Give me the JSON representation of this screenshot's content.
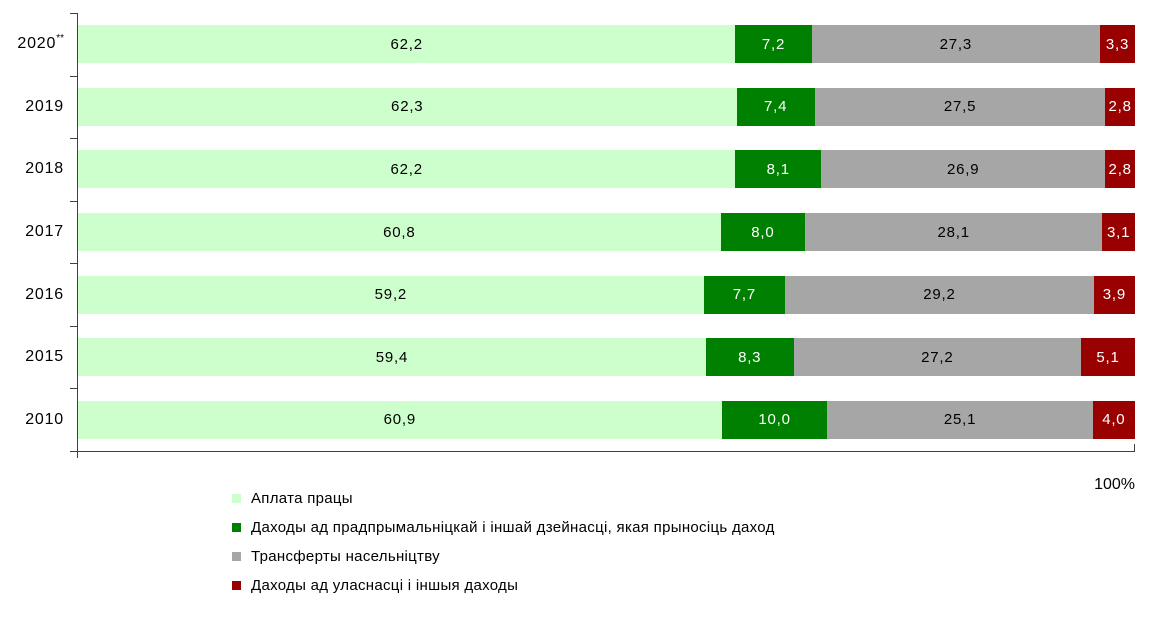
{
  "chart_data": {
    "type": "bar",
    "subtype": "horizontal-stacked-100pct",
    "title": "",
    "categories": [
      "2020",
      "2019",
      "2018",
      "2017",
      "2016",
      "2015",
      "2010"
    ],
    "category_markers": [
      "**",
      "",
      "",
      "",
      "",
      "",
      ""
    ],
    "series": [
      {
        "name": "Аплата працы",
        "color": "#CCFFCC",
        "label_color": "#000000",
        "values": [
          62.2,
          62.3,
          62.2,
          60.8,
          59.2,
          59.4,
          60.9
        ]
      },
      {
        "name": "Даходы ад прадпрымальніцкай і іншай дзейнасці, якая прыносіць даход",
        "color": "#008000",
        "label_color": "#FFFFFF",
        "values": [
          7.2,
          7.4,
          8.1,
          8.0,
          7.7,
          8.3,
          10.0
        ]
      },
      {
        "name": "Трансферты насельніцтву",
        "color": "#A6A6A6",
        "label_color": "#000000",
        "values": [
          27.3,
          27.5,
          26.9,
          28.1,
          29.2,
          27.2,
          25.1
        ]
      },
      {
        "name": "Даходы ад уласнасці і іншыя даходы",
        "color": "#990000",
        "label_color": "#FFFFFF",
        "values": [
          3.3,
          2.8,
          2.8,
          3.1,
          3.9,
          5.1,
          4.0
        ]
      }
    ],
    "xlim": [
      0,
      100
    ],
    "x_end_label": "100%",
    "value_label_format": "comma-decimal-1",
    "legend_position": "bottom-left",
    "grid": false
  }
}
